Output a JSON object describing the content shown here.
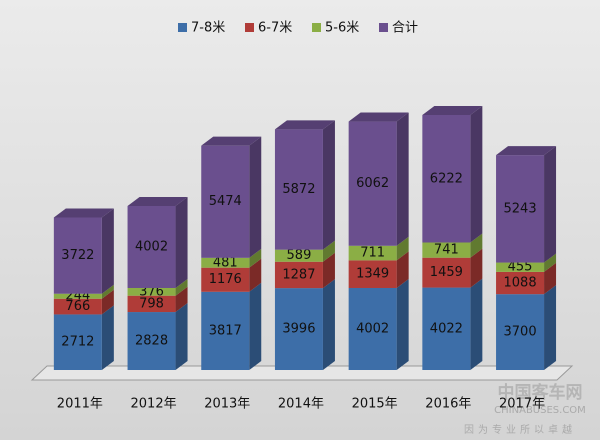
{
  "chart_data": {
    "type": "stacked-bar-3d",
    "categories": [
      "2011年",
      "2012年",
      "2013年",
      "2014年",
      "2015年",
      "2016年",
      "2017年"
    ],
    "series": [
      {
        "name": "7-8米",
        "color": "#3d6ea8",
        "values": [
          2712,
          2828,
          3817,
          3996,
          4002,
          4022,
          3700
        ]
      },
      {
        "name": "6-7米",
        "color": "#b03c38",
        "values": [
          766,
          798,
          1176,
          1287,
          1349,
          1459,
          1088
        ]
      },
      {
        "name": "5-6米",
        "color": "#8bae45",
        "values": [
          244,
          376,
          481,
          589,
          711,
          741,
          455
        ]
      },
      {
        "name": "合计",
        "color": "#6a4f8e",
        "values": [
          3722,
          4002,
          5474,
          5872,
          6062,
          6222,
          5243
        ]
      }
    ],
    "legend": "top"
  },
  "watermark": {
    "name": "中国客车网",
    "url": "CHINABUSES.COM",
    "slogan": "因为专业所以卓越"
  }
}
